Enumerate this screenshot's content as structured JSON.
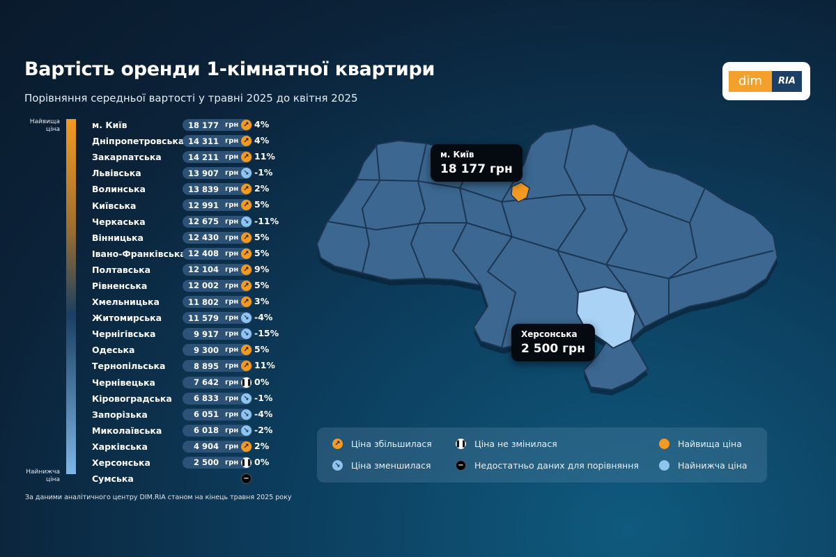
{
  "header": {
    "title": "Вартість оренди 1-кімнатної квартири",
    "subtitle": "Порівняння середньої вартості у травні 2025 до квітня 2025"
  },
  "logo": {
    "left": "dim",
    "right": "RIA"
  },
  "scale": {
    "top": "Найвища ціна",
    "bottom": "Найнижча ціна",
    "colors": {
      "high": "#f39a22",
      "low": "#8ec4ef"
    }
  },
  "currency": "грн",
  "rows": [
    {
      "name": "м. Київ",
      "value": "18 177",
      "trend": "up",
      "pct": "4%"
    },
    {
      "name": "Дніпропетровська",
      "value": "14 311",
      "trend": "up",
      "pct": "4%"
    },
    {
      "name": "Закарпатська",
      "value": "14 211",
      "trend": "up",
      "pct": "11%"
    },
    {
      "name": "Львівська",
      "value": "13 907",
      "trend": "down",
      "pct": "-1%"
    },
    {
      "name": "Волинська",
      "value": "13 839",
      "trend": "up",
      "pct": "2%"
    },
    {
      "name": "Київська",
      "value": "12 991",
      "trend": "up",
      "pct": "5%"
    },
    {
      "name": "Черкаська",
      "value": "12 675",
      "trend": "down",
      "pct": "-11%"
    },
    {
      "name": "Вінницька",
      "value": "12 430",
      "trend": "up",
      "pct": "5%"
    },
    {
      "name": "Івано-Франківська",
      "value": "12 408",
      "trend": "up",
      "pct": "5%"
    },
    {
      "name": "Полтавська",
      "value": "12 104",
      "trend": "up",
      "pct": "9%"
    },
    {
      "name": "Рівненська",
      "value": "12 002",
      "trend": "up",
      "pct": "5%"
    },
    {
      "name": "Хмельницька",
      "value": "11 802",
      "trend": "up",
      "pct": "3%"
    },
    {
      "name": "Житомирська",
      "value": "11 579",
      "trend": "down",
      "pct": "-4%"
    },
    {
      "name": "Чернігівська",
      "value": "9 917",
      "trend": "down",
      "pct": "-15%"
    },
    {
      "name": "Одеська",
      "value": "9 300",
      "trend": "up",
      "pct": "5%"
    },
    {
      "name": "Тернопільська",
      "value": "8 895",
      "trend": "up",
      "pct": "11%"
    },
    {
      "name": "Чернівецька",
      "value": "7 642",
      "trend": "same",
      "pct": "0%"
    },
    {
      "name": "Кіровоградська",
      "value": "6 833",
      "trend": "down",
      "pct": "-1%"
    },
    {
      "name": "Запорізька",
      "value": "6 051",
      "trend": "down",
      "pct": "-4%"
    },
    {
      "name": "Миколаївська",
      "value": "6 018",
      "trend": "down",
      "pct": "-2%"
    },
    {
      "name": "Харківська",
      "value": "4 904",
      "trend": "up",
      "pct": "2%"
    },
    {
      "name": "Херсонська",
      "value": "2 500",
      "trend": "same",
      "pct": "0%"
    },
    {
      "name": "Сумська",
      "value": null,
      "trend": "none",
      "pct": null
    }
  ],
  "footnote": "За даними аналітичного центру DIM.RIA станом на кінець травня 2025 року",
  "map": {
    "highest": {
      "name": "м. Київ",
      "price": "18 177 грн"
    },
    "lowest": {
      "name": "Херсонська",
      "price": "2 500 грн"
    },
    "colors": {
      "region": "#3b6790",
      "highest": "#f39a22",
      "lowest": "#a9d2f5"
    }
  },
  "legend": {
    "up": "Ціна збільшилася",
    "same": "Ціна не змінилася",
    "highest": "Найвища ціна",
    "down": "Ціна зменшилася",
    "none": "Недостатньо даних для порівняння",
    "lowest": "Найнижча ціна"
  }
}
